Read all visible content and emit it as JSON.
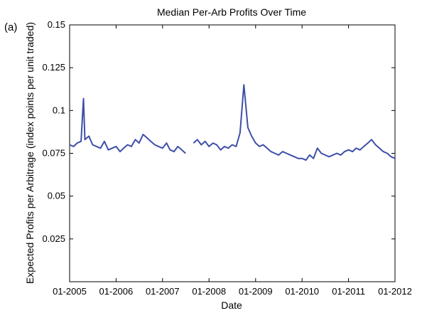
{
  "panel_label": "(a)",
  "chart_data": {
    "type": "line",
    "title": "Median Per-Arb Profits Over Time",
    "xlabel": "Date",
    "ylabel": "Expected Profits per Arbitrage (index points per unit traded)",
    "xlim": [
      "2005-01-01",
      "2012-01-01"
    ],
    "ylim": [
      0,
      0.15
    ],
    "x_ticks": [
      "01-2005",
      "01-2006",
      "01-2007",
      "01-2008",
      "01-2009",
      "01-2010",
      "01-2011",
      "01-2012"
    ],
    "y_ticks": [
      "0.025",
      "0.05",
      "0.075",
      "0.1",
      "0.125",
      "0.15"
    ],
    "grid": false,
    "line_color": "#3d4fa8",
    "series": [
      {
        "segments": [
          {
            "x": [
              "2005-01-01",
              "2005-02-01",
              "2005-03-01",
              "2005-04-01",
              "2005-04-20",
              "2005-05-01",
              "2005-06-01",
              "2005-07-01",
              "2005-08-01",
              "2005-09-01",
              "2005-10-01",
              "2005-11-01",
              "2005-12-01",
              "2006-01-01",
              "2006-02-01",
              "2006-03-01",
              "2006-04-01",
              "2006-05-01",
              "2006-06-01",
              "2006-07-01",
              "2006-08-01",
              "2006-09-01",
              "2006-10-01",
              "2006-11-01",
              "2006-12-01",
              "2007-01-01",
              "2007-02-01",
              "2007-03-01",
              "2007-04-01",
              "2007-05-01",
              "2007-06-01",
              "2007-07-01"
            ],
            "y": [
              0.08,
              0.079,
              0.081,
              0.082,
              0.107,
              0.083,
              0.085,
              0.08,
              0.079,
              0.078,
              0.082,
              0.077,
              0.078,
              0.079,
              0.076,
              0.078,
              0.08,
              0.079,
              0.083,
              0.081,
              0.086,
              0.084,
              0.082,
              0.08,
              0.079,
              0.078,
              0.081,
              0.077,
              0.076,
              0.079,
              0.077,
              0.075
            ]
          },
          {
            "x": [
              "2007-09-01",
              "2007-10-01",
              "2007-11-01",
              "2007-12-01",
              "2008-01-01",
              "2008-02-01",
              "2008-03-01",
              "2008-04-01",
              "2008-05-01",
              "2008-06-01",
              "2008-07-01",
              "2008-08-01",
              "2008-09-01",
              "2008-10-01",
              "2008-11-01",
              "2008-12-01",
              "2009-01-01",
              "2009-02-01",
              "2009-03-01",
              "2009-04-01",
              "2009-05-01",
              "2009-06-01",
              "2009-07-01",
              "2009-08-01",
              "2009-09-01",
              "2009-10-01",
              "2009-11-01",
              "2009-12-01",
              "2010-01-01",
              "2010-02-01",
              "2010-03-01",
              "2010-04-01",
              "2010-05-01",
              "2010-06-01",
              "2010-07-01",
              "2010-08-01",
              "2010-09-01",
              "2010-10-01",
              "2010-11-01",
              "2010-12-01",
              "2011-01-01",
              "2011-02-01",
              "2011-03-01",
              "2011-04-01",
              "2011-05-01",
              "2011-06-01",
              "2011-07-01",
              "2011-08-01",
              "2011-09-01",
              "2011-10-01",
              "2011-11-01",
              "2011-12-01",
              "2012-01-01"
            ],
            "y": [
              0.081,
              0.083,
              0.08,
              0.082,
              0.079,
              0.081,
              0.08,
              0.077,
              0.079,
              0.078,
              0.08,
              0.079,
              0.087,
              0.115,
              0.09,
              0.085,
              0.081,
              0.079,
              0.08,
              0.078,
              0.076,
              0.075,
              0.074,
              0.076,
              0.075,
              0.074,
              0.073,
              0.072,
              0.072,
              0.071,
              0.074,
              0.072,
              0.078,
              0.075,
              0.074,
              0.073,
              0.074,
              0.075,
              0.074,
              0.076,
              0.077,
              0.076,
              0.078,
              0.077,
              0.079,
              0.081,
              0.083,
              0.08,
              0.078,
              0.076,
              0.075,
              0.073,
              0.072
            ]
          }
        ]
      }
    ]
  }
}
